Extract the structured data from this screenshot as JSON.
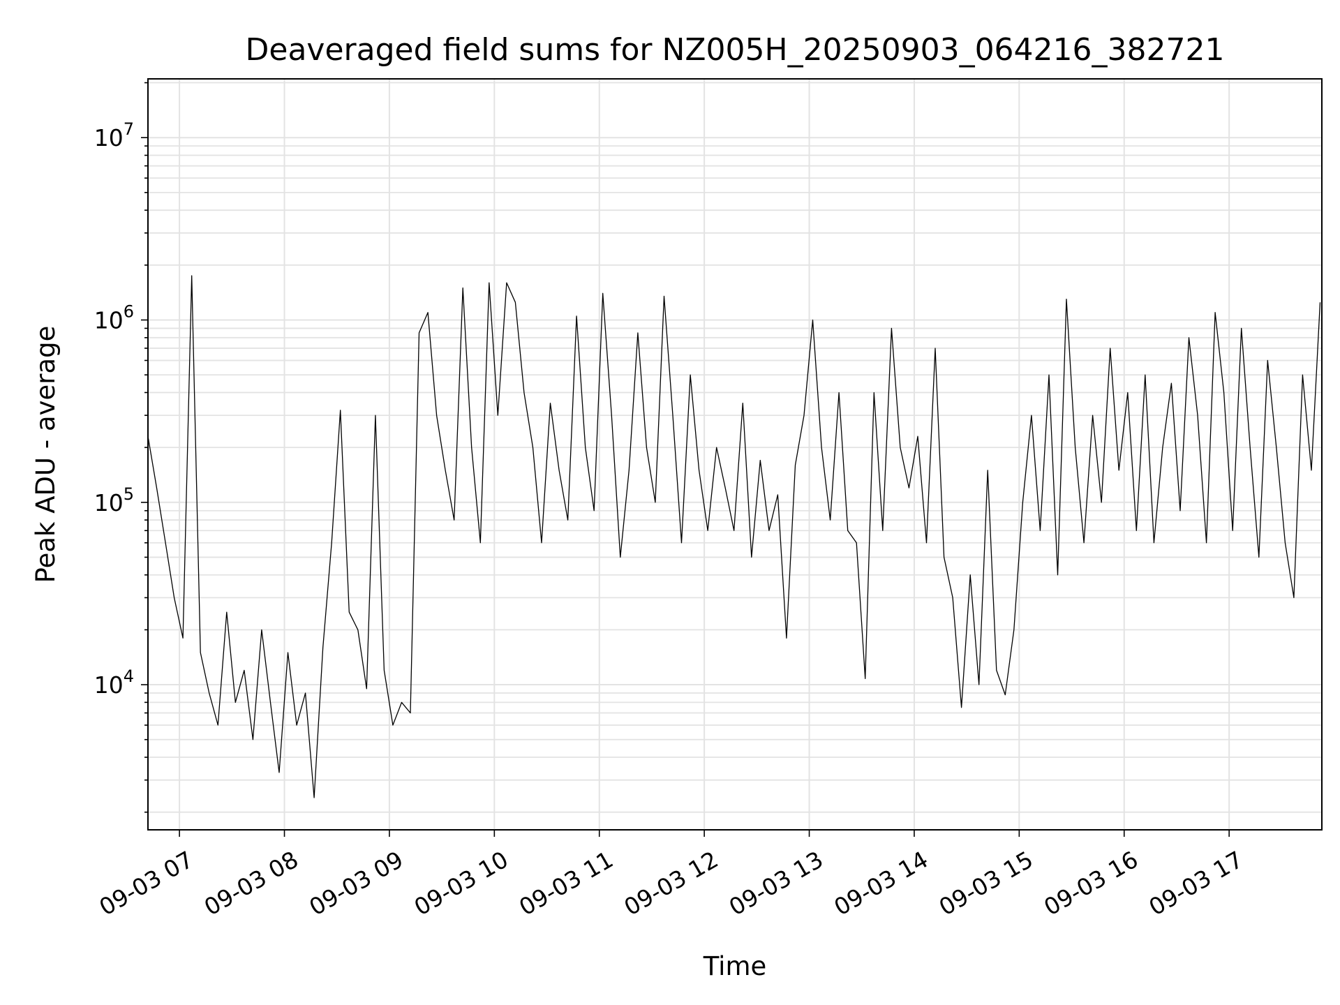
{
  "chart_data": {
    "type": "line",
    "title": "Deaveraged field sums for NZ005H_20250903_064216_382721",
    "xlabel": "Time",
    "ylabel": "Peak ADU - average",
    "y_scale": "log",
    "ylim": [
      1600,
      21000000
    ],
    "xlim": [
      "2025-09-03 06:42",
      "2025-09-03 17:53"
    ],
    "grid": "major and minor",
    "line_color": "#000000",
    "x_ticks": [
      {
        "t": "2025-09-03 07:00",
        "label": "09-03 07"
      },
      {
        "t": "2025-09-03 08:00",
        "label": "09-03 08"
      },
      {
        "t": "2025-09-03 09:00",
        "label": "09-03 09"
      },
      {
        "t": "2025-09-03 10:00",
        "label": "09-03 10"
      },
      {
        "t": "2025-09-03 11:00",
        "label": "09-03 11"
      },
      {
        "t": "2025-09-03 12:00",
        "label": "09-03 12"
      },
      {
        "t": "2025-09-03 13:00",
        "label": "09-03 13"
      },
      {
        "t": "2025-09-03 14:00",
        "label": "09-03 14"
      },
      {
        "t": "2025-09-03 15:00",
        "label": "09-03 15"
      },
      {
        "t": "2025-09-03 16:00",
        "label": "09-03 16"
      },
      {
        "t": "2025-09-03 17:00",
        "label": "09-03 17"
      }
    ],
    "y_ticks": [
      {
        "value": 10000,
        "base": "10",
        "exp": "4"
      },
      {
        "value": 100000,
        "base": "10",
        "exp": "5"
      },
      {
        "value": 1000000,
        "base": "10",
        "exp": "6"
      },
      {
        "value": 10000000,
        "base": "10",
        "exp": "7"
      }
    ],
    "series": [
      {
        "x": [
          "2025-09-03 06:42",
          "2025-09-03 06:47",
          "2025-09-03 06:52",
          "2025-09-03 06:57",
          "2025-09-03 07:02",
          "2025-09-03 07:07",
          "2025-09-03 07:12",
          "2025-09-03 07:17",
          "2025-09-03 07:22",
          "2025-09-03 07:27",
          "2025-09-03 07:32",
          "2025-09-03 07:37",
          "2025-09-03 07:42",
          "2025-09-03 07:47",
          "2025-09-03 07:52",
          "2025-09-03 07:57",
          "2025-09-03 08:02",
          "2025-09-03 08:07",
          "2025-09-03 08:12",
          "2025-09-03 08:17",
          "2025-09-03 08:22",
          "2025-09-03 08:27",
          "2025-09-03 08:32",
          "2025-09-03 08:37",
          "2025-09-03 08:42",
          "2025-09-03 08:47",
          "2025-09-03 08:52",
          "2025-09-03 08:57",
          "2025-09-03 09:02",
          "2025-09-03 09:07",
          "2025-09-03 09:12",
          "2025-09-03 09:17",
          "2025-09-03 09:22",
          "2025-09-03 09:27",
          "2025-09-03 09:32",
          "2025-09-03 09:37",
          "2025-09-03 09:42",
          "2025-09-03 09:47",
          "2025-09-03 09:52",
          "2025-09-03 09:57",
          "2025-09-03 10:02",
          "2025-09-03 10:07",
          "2025-09-03 10:12",
          "2025-09-03 10:17",
          "2025-09-03 10:22",
          "2025-09-03 10:27",
          "2025-09-03 10:32",
          "2025-09-03 10:37",
          "2025-09-03 10:42",
          "2025-09-03 10:47",
          "2025-09-03 10:52",
          "2025-09-03 10:57",
          "2025-09-03 11:02",
          "2025-09-03 11:07",
          "2025-09-03 11:12",
          "2025-09-03 11:17",
          "2025-09-03 11:22",
          "2025-09-03 11:27",
          "2025-09-03 11:32",
          "2025-09-03 11:37",
          "2025-09-03 11:42",
          "2025-09-03 11:47",
          "2025-09-03 11:52",
          "2025-09-03 11:57",
          "2025-09-03 12:02",
          "2025-09-03 12:07",
          "2025-09-03 12:12",
          "2025-09-03 12:17",
          "2025-09-03 12:22",
          "2025-09-03 12:27",
          "2025-09-03 12:32",
          "2025-09-03 12:37",
          "2025-09-03 12:42",
          "2025-09-03 12:47",
          "2025-09-03 12:52",
          "2025-09-03 12:57",
          "2025-09-03 13:02",
          "2025-09-03 13:07",
          "2025-09-03 13:12",
          "2025-09-03 13:17",
          "2025-09-03 13:22",
          "2025-09-03 13:27",
          "2025-09-03 13:32",
          "2025-09-03 13:37",
          "2025-09-03 13:42",
          "2025-09-03 13:47",
          "2025-09-03 13:52",
          "2025-09-03 13:57",
          "2025-09-03 14:02",
          "2025-09-03 14:07",
          "2025-09-03 14:12",
          "2025-09-03 14:17",
          "2025-09-03 14:22",
          "2025-09-03 14:27",
          "2025-09-03 14:32",
          "2025-09-03 14:37",
          "2025-09-03 14:42",
          "2025-09-03 14:47",
          "2025-09-03 14:52",
          "2025-09-03 14:57",
          "2025-09-03 15:02",
          "2025-09-03 15:07",
          "2025-09-03 15:12",
          "2025-09-03 15:17",
          "2025-09-03 15:22",
          "2025-09-03 15:27",
          "2025-09-03 15:32",
          "2025-09-03 15:37",
          "2025-09-03 15:42",
          "2025-09-03 15:47",
          "2025-09-03 15:52",
          "2025-09-03 15:57",
          "2025-09-03 16:02",
          "2025-09-03 16:07",
          "2025-09-03 16:12",
          "2025-09-03 16:17",
          "2025-09-03 16:22",
          "2025-09-03 16:27",
          "2025-09-03 16:32",
          "2025-09-03 16:37",
          "2025-09-03 16:42",
          "2025-09-03 16:47",
          "2025-09-03 16:52",
          "2025-09-03 16:57",
          "2025-09-03 17:02",
          "2025-09-03 17:07",
          "2025-09-03 17:12",
          "2025-09-03 17:17",
          "2025-09-03 17:22",
          "2025-09-03 17:27",
          "2025-09-03 17:32",
          "2025-09-03 17:37",
          "2025-09-03 17:42",
          "2025-09-03 17:47",
          "2025-09-03 17:52"
        ],
        "y": [
          230000,
          120000,
          60000,
          30000,
          18000,
          1750000,
          15000,
          9000,
          6000,
          25000,
          8000,
          12000,
          5000,
          20000,
          8000,
          3300,
          15000,
          6000,
          9000,
          2400,
          16000,
          60000,
          320000,
          25000,
          20000,
          9500,
          300000,
          12000,
          6000,
          8000,
          7000,
          850000,
          1100000,
          300000,
          150000,
          80000,
          1500000,
          200000,
          60000,
          1600000,
          300000,
          1600000,
          1250000,
          400000,
          200000,
          60000,
          350000,
          150000,
          80000,
          1050000,
          200000,
          90000,
          1400000,
          300000,
          50000,
          150000,
          850000,
          200000,
          100000,
          1350000,
          300000,
          60000,
          500000,
          150000,
          70000,
          200000,
          120000,
          70000,
          350000,
          50000,
          170000,
          70000,
          110000,
          18000,
          160000,
          300000,
          1000000,
          200000,
          80000,
          400000,
          70000,
          60000,
          10800,
          400000,
          70000,
          900000,
          200000,
          120000,
          230000,
          60000,
          700000,
          50000,
          30000,
          7500,
          40000,
          10000,
          150000,
          12000,
          8800,
          20000,
          100000,
          300000,
          70000,
          500000,
          40000,
          1300000,
          200000,
          60000,
          300000,
          100000,
          700000,
          150000,
          400000,
          70000,
          500000,
          60000,
          200000,
          450000,
          90000,
          800000,
          300000,
          60000,
          1100000,
          400000,
          70000,
          900000,
          200000,
          50000,
          600000,
          200000,
          60000,
          30000,
          500000,
          150000,
          1250000
        ]
      }
    ]
  }
}
